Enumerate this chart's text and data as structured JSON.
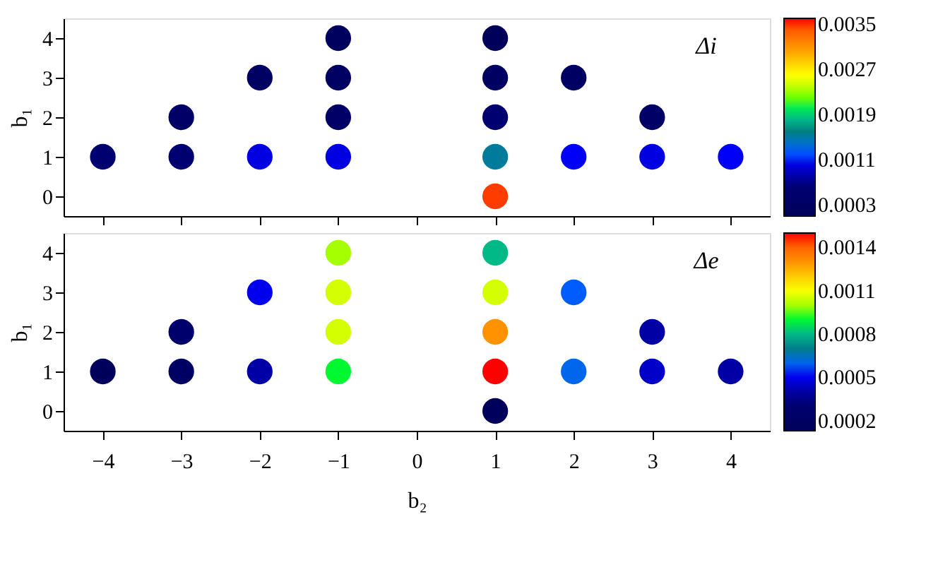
{
  "chart_data": [
    {
      "type": "scatter",
      "ylabel": "b₁",
      "annotations": [
        "Δi"
      ],
      "tick_labels": "y",
      "grid": false,
      "x": [
        -1,
        1,
        -2,
        -1,
        1,
        2,
        -3,
        -1,
        1,
        3,
        -4,
        -3,
        -2,
        -1,
        1,
        2,
        3,
        4,
        1
      ],
      "values": [
        4,
        4,
        3,
        3,
        3,
        3,
        2,
        2,
        2,
        2,
        1,
        1,
        1,
        1,
        1,
        1,
        1,
        1,
        0
      ],
      "cvalues": [
        0.0002,
        0.0001,
        0.0003,
        0.0003,
        0.0003,
        0.0003,
        0.0004,
        0.0004,
        0.0006,
        0.0004,
        0.0006,
        0.0006,
        0.001,
        0.001,
        0.0015,
        0.00108,
        0.001,
        0.00108,
        0.0035
      ],
      "xlim": [
        -4.5,
        4.5
      ],
      "xticks": [
        -4,
        -3,
        -2,
        -1,
        0,
        1,
        2,
        3,
        4
      ],
      "ylim": [
        -0.5,
        4.5
      ],
      "yticks": [
        0,
        1,
        2,
        3,
        4
      ],
      "clim": [
        0.0001,
        0.0036
      ],
      "cticks": [
        0.0003,
        0.0011,
        0.0019,
        0.0027,
        0.0035
      ]
    },
    {
      "type": "scatter",
      "xlabel": "b₂",
      "ylabel": "b₁",
      "annotations": [
        "Δe"
      ],
      "grid": false,
      "x": [
        -1,
        1,
        -2,
        -1,
        1,
        2,
        -3,
        -1,
        1,
        3,
        -4,
        -3,
        -2,
        -1,
        1,
        2,
        3,
        4,
        1
      ],
      "values": [
        4,
        4,
        3,
        3,
        3,
        3,
        2,
        2,
        2,
        2,
        1,
        1,
        1,
        1,
        1,
        1,
        1,
        1,
        0
      ],
      "cvalues": [
        0.001,
        0.0008,
        0.0005,
        0.00105,
        0.00105,
        0.00058,
        0.0003,
        0.00105,
        0.0013,
        0.0004,
        0.00015,
        0.00022,
        0.0004,
        0.0009,
        0.0015,
        0.0006,
        0.00045,
        0.0004,
        0.00015
      ],
      "xlim": [
        -4.5,
        4.5
      ],
      "xticks": [
        -4,
        -3,
        -2,
        -1,
        0,
        1,
        2,
        3,
        4
      ],
      "ylim": [
        -0.5,
        4.5
      ],
      "yticks": [
        0,
        1,
        2,
        3,
        4
      ],
      "clim": [
        0.00013,
        0.0015
      ],
      "cticks": [
        0.0002,
        0.0005,
        0.0008,
        0.0011,
        0.0014
      ]
    }
  ]
}
